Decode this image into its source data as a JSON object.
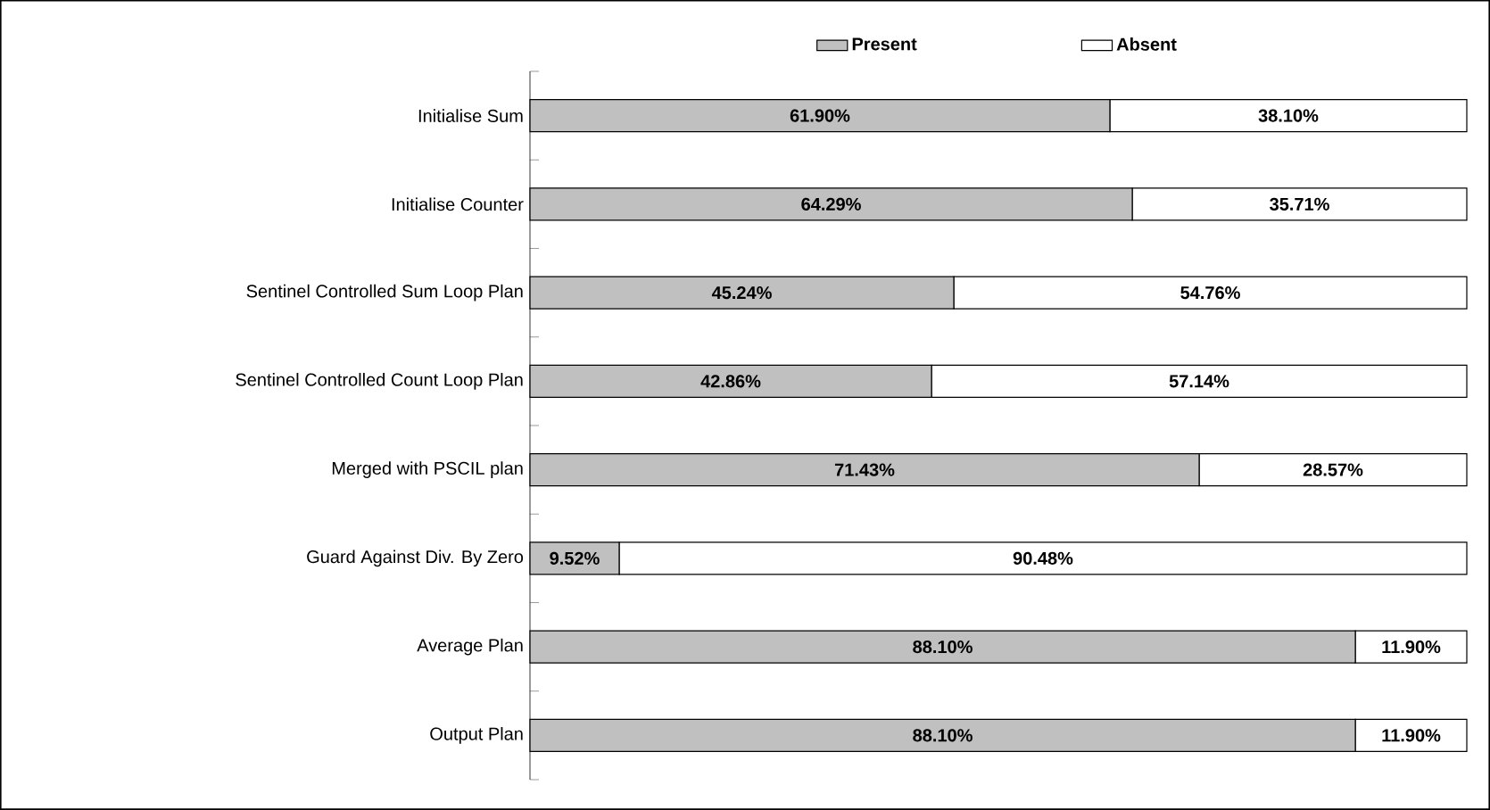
{
  "chart_data": {
    "type": "bar",
    "orientation": "horizontal",
    "stacked": true,
    "categories": [
      "Initialise Sum",
      "Initialise Counter",
      "Sentinel Controlled Sum Loop Plan",
      "Sentinel Controlled Count Loop Plan",
      "Merged with PSCIL plan",
      "Guard Against Div. By Zero",
      "Average Plan",
      "Output Plan"
    ],
    "series": [
      {
        "name": "Present",
        "color": "#c0c0c0",
        "values": [
          61.9,
          64.29,
          45.24,
          42.86,
          71.43,
          9.52,
          88.1,
          88.1
        ],
        "value_labels": [
          "61.90%",
          "64.29%",
          "45.24%",
          "42.86%",
          "71.43%",
          "9.52%",
          "88.10%",
          "88.10%"
        ]
      },
      {
        "name": "Absent",
        "color": "#ffffff",
        "values": [
          38.1,
          35.71,
          54.76,
          57.14,
          28.57,
          90.48,
          11.9,
          11.9
        ],
        "value_labels": [
          "38.10%",
          "35.71%",
          "54.76%",
          "57.14%",
          "28.57%",
          "90.48%",
          "11.90%",
          "11.90%"
        ]
      }
    ],
    "xlim": [
      0,
      100
    ],
    "tick_labels": "y",
    "legend": "top"
  }
}
